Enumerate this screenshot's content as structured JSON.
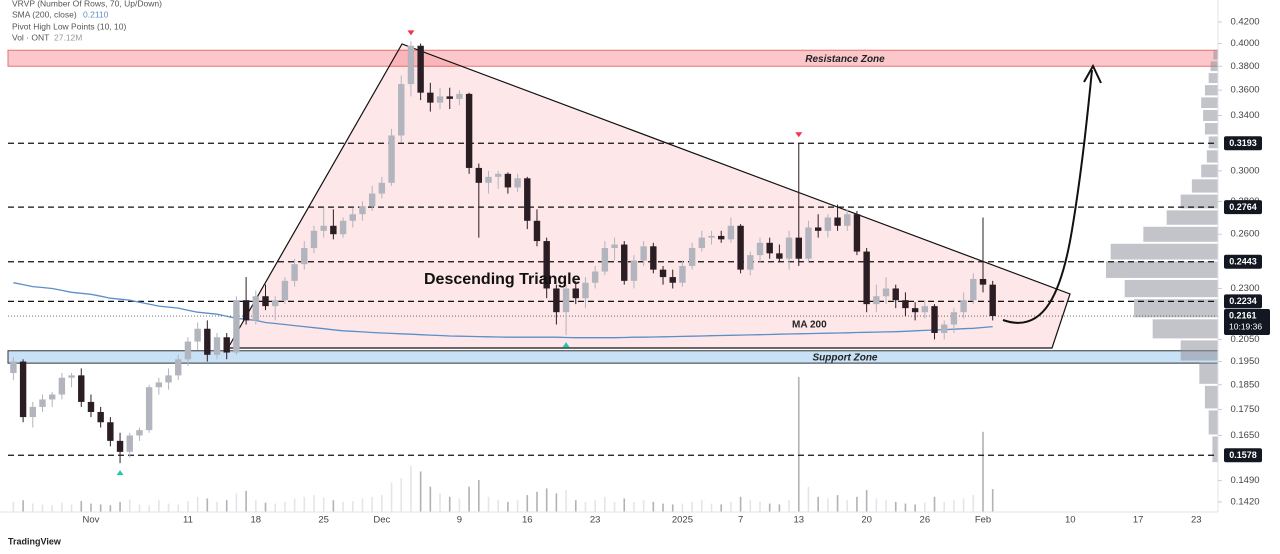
{
  "chart_data": {
    "type": "candlestick",
    "legend": [
      "VRVP (Number Of Rows, 70, Up/Down)",
      "SMA (200, close)",
      "0.2110",
      "Pivot High Low Points (10, 10)",
      "Vol · ONT",
      "27.12M"
    ],
    "log_scale": true,
    "grid": false,
    "up_color": "#b2b5be",
    "down_color": "#2b1d24",
    "sma_color": "#5b8fc9",
    "categories": [
      null,
      null,
      null,
      null,
      null,
      null,
      null,
      null,
      "Nov",
      null,
      null,
      null,
      null,
      null,
      null,
      null,
      null,
      null,
      "11",
      null,
      null,
      null,
      null,
      null,
      null,
      "18",
      null,
      null,
      null,
      null,
      null,
      null,
      "25",
      null,
      null,
      null,
      null,
      null,
      "Dec",
      null,
      null,
      null,
      null,
      null,
      null,
      null,
      "9",
      null,
      null,
      null,
      null,
      null,
      null,
      "16",
      null,
      null,
      null,
      null,
      null,
      null,
      "23",
      null,
      null,
      null,
      null,
      null,
      null,
      null,
      null,
      "2025",
      null,
      null,
      null,
      null,
      null,
      "7",
      null,
      null,
      null,
      null,
      null,
      "13",
      null,
      null,
      null,
      null,
      null,
      null,
      "20",
      null,
      null,
      null,
      null,
      null,
      "26",
      null,
      null,
      null,
      null,
      null,
      "Feb",
      null,
      null,
      null,
      null,
      null,
      null,
      null,
      null,
      "10",
      null,
      null,
      null,
      null,
      null,
      null,
      "17",
      null,
      null,
      null,
      null,
      null,
      "23",
      null
    ],
    "ohlc": [
      [
        0.19,
        0.197,
        0.187,
        0.195
      ],
      [
        0.195,
        0.196,
        0.17,
        0.172
      ],
      [
        0.172,
        0.178,
        0.168,
        0.176
      ],
      [
        0.176,
        0.181,
        0.174,
        0.179
      ],
      [
        0.179,
        0.182,
        0.176,
        0.181
      ],
      [
        0.181,
        0.19,
        0.179,
        0.188
      ],
      [
        0.188,
        0.19,
        0.184,
        0.189
      ],
      [
        0.189,
        0.192,
        0.176,
        0.178
      ],
      [
        0.178,
        0.181,
        0.172,
        0.174
      ],
      [
        0.174,
        0.176,
        0.168,
        0.17
      ],
      [
        0.17,
        0.172,
        0.161,
        0.163
      ],
      [
        0.163,
        0.166,
        0.155,
        0.159
      ],
      [
        0.159,
        0.166,
        0.157,
        0.165
      ],
      [
        0.165,
        0.168,
        0.163,
        0.167
      ],
      [
        0.167,
        0.185,
        0.166,
        0.184
      ],
      [
        0.184,
        0.188,
        0.181,
        0.186
      ],
      [
        0.186,
        0.192,
        0.183,
        0.189
      ],
      [
        0.189,
        0.198,
        0.187,
        0.196
      ],
      [
        0.196,
        0.206,
        0.193,
        0.204
      ],
      [
        0.204,
        0.213,
        0.2,
        0.21
      ],
      [
        0.21,
        0.214,
        0.195,
        0.198
      ],
      [
        0.198,
        0.208,
        0.196,
        0.206
      ],
      [
        0.206,
        0.208,
        0.196,
        0.199
      ],
      [
        0.199,
        0.226,
        0.198,
        0.224
      ],
      [
        0.224,
        0.236,
        0.212,
        0.214
      ],
      [
        0.214,
        0.229,
        0.212,
        0.226
      ],
      [
        0.226,
        0.232,
        0.219,
        0.221
      ],
      [
        0.221,
        0.226,
        0.214,
        0.224
      ],
      [
        0.224,
        0.236,
        0.222,
        0.234
      ],
      [
        0.234,
        0.246,
        0.231,
        0.243
      ],
      [
        0.243,
        0.256,
        0.24,
        0.252
      ],
      [
        0.252,
        0.265,
        0.249,
        0.262
      ],
      [
        0.262,
        0.276,
        0.258,
        0.265
      ],
      [
        0.265,
        0.275,
        0.257,
        0.26
      ],
      [
        0.26,
        0.27,
        0.258,
        0.268
      ],
      [
        0.268,
        0.276,
        0.264,
        0.272
      ],
      [
        0.272,
        0.28,
        0.268,
        0.277
      ],
      [
        0.277,
        0.29,
        0.274,
        0.285
      ],
      [
        0.285,
        0.296,
        0.282,
        0.292
      ],
      [
        0.292,
        0.33,
        0.29,
        0.325
      ],
      [
        0.325,
        0.372,
        0.32,
        0.365
      ],
      [
        0.365,
        0.402,
        0.355,
        0.398
      ],
      [
        0.398,
        0.4,
        0.352,
        0.358
      ],
      [
        0.358,
        0.366,
        0.343,
        0.35
      ],
      [
        0.35,
        0.362,
        0.345,
        0.355
      ],
      [
        0.355,
        0.362,
        0.345,
        0.353
      ],
      [
        0.353,
        0.36,
        0.348,
        0.357
      ],
      [
        0.357,
        0.358,
        0.298,
        0.302
      ],
      [
        0.302,
        0.305,
        0.258,
        0.292
      ],
      [
        0.292,
        0.3,
        0.285,
        0.296
      ],
      [
        0.296,
        0.3,
        0.288,
        0.298
      ],
      [
        0.298,
        0.299,
        0.285,
        0.289
      ],
      [
        0.289,
        0.298,
        0.286,
        0.295
      ],
      [
        0.295,
        0.296,
        0.263,
        0.268
      ],
      [
        0.268,
        0.275,
        0.253,
        0.256
      ],
      [
        0.256,
        0.258,
        0.225,
        0.23
      ],
      [
        0.23,
        0.232,
        0.212,
        0.218
      ],
      [
        0.218,
        0.232,
        0.207,
        0.23
      ],
      [
        0.23,
        0.234,
        0.222,
        0.225
      ],
      [
        0.225,
        0.236,
        0.22,
        0.233
      ],
      [
        0.233,
        0.242,
        0.23,
        0.239
      ],
      [
        0.239,
        0.256,
        0.237,
        0.252
      ],
      [
        0.252,
        0.258,
        0.245,
        0.254
      ],
      [
        0.254,
        0.256,
        0.232,
        0.234
      ],
      [
        0.234,
        0.248,
        0.23,
        0.245
      ],
      [
        0.245,
        0.256,
        0.242,
        0.253
      ],
      [
        0.253,
        0.255,
        0.238,
        0.24
      ],
      [
        0.24,
        0.242,
        0.232,
        0.236
      ],
      [
        0.236,
        0.24,
        0.23,
        0.233
      ],
      [
        0.233,
        0.245,
        0.231,
        0.242
      ],
      [
        0.242,
        0.255,
        0.24,
        0.252
      ],
      [
        0.252,
        0.262,
        0.25,
        0.258
      ],
      [
        0.258,
        0.262,
        0.254,
        0.259
      ],
      [
        0.259,
        0.262,
        0.255,
        0.257
      ],
      [
        0.257,
        0.27,
        0.255,
        0.265
      ],
      [
        0.265,
        0.266,
        0.238,
        0.24
      ],
      [
        0.24,
        0.25,
        0.237,
        0.248
      ],
      [
        0.248,
        0.258,
        0.244,
        0.255
      ],
      [
        0.255,
        0.258,
        0.246,
        0.249
      ],
      [
        0.249,
        0.254,
        0.244,
        0.246
      ],
      [
        0.246,
        0.262,
        0.24,
        0.258
      ],
      [
        0.258,
        0.3193,
        0.242,
        0.246
      ],
      [
        0.246,
        0.268,
        0.244,
        0.264
      ],
      [
        0.264,
        0.272,
        0.258,
        0.262
      ],
      [
        0.262,
        0.272,
        0.258,
        0.27
      ],
      [
        0.27,
        0.278,
        0.262,
        0.265
      ],
      [
        0.265,
        0.275,
        0.262,
        0.272
      ],
      [
        0.272,
        0.274,
        0.248,
        0.25
      ],
      [
        0.25,
        0.252,
        0.218,
        0.222
      ],
      [
        0.222,
        0.232,
        0.218,
        0.226
      ],
      [
        0.226,
        0.236,
        0.222,
        0.23
      ],
      [
        0.23,
        0.232,
        0.22,
        0.224
      ],
      [
        0.224,
        0.228,
        0.216,
        0.22
      ],
      [
        0.22,
        0.223,
        0.214,
        0.218
      ],
      [
        0.218,
        0.224,
        0.215,
        0.221
      ],
      [
        0.221,
        0.222,
        0.205,
        0.208
      ],
      [
        0.208,
        0.214,
        0.205,
        0.212
      ],
      [
        0.212,
        0.22,
        0.208,
        0.218
      ],
      [
        0.218,
        0.228,
        0.215,
        0.224
      ],
      [
        0.224,
        0.238,
        0.222,
        0.235
      ],
      [
        0.235,
        0.27,
        0.228,
        0.232
      ],
      [
        0.232,
        0.234,
        0.214,
        0.2161
      ],
      null,
      null,
      null,
      null,
      null,
      null,
      null,
      null,
      null,
      null,
      null,
      null,
      null,
      null,
      null,
      null,
      null,
      null,
      null,
      null,
      null,
      null
    ],
    "volume": [
      12,
      14,
      10,
      9,
      8,
      11,
      9,
      13,
      10,
      9,
      8,
      12,
      15,
      9,
      8,
      14,
      10,
      9,
      13,
      18,
      16,
      12,
      14,
      22,
      25,
      14,
      11,
      10,
      12,
      16,
      18,
      20,
      17,
      14,
      12,
      13,
      16,
      18,
      20,
      35,
      40,
      55,
      48,
      30,
      22,
      18,
      16,
      30,
      38,
      18,
      14,
      12,
      14,
      20,
      24,
      28,
      22,
      26,
      14,
      12,
      14,
      18,
      12,
      16,
      12,
      14,
      12,
      10,
      9,
      10,
      12,
      14,
      10,
      9,
      12,
      18,
      14,
      12,
      10,
      9,
      14,
      160,
      30,
      18,
      16,
      20,
      14,
      18,
      26,
      16,
      14,
      12,
      10,
      9,
      11,
      18,
      12,
      14,
      16,
      20,
      95,
      27.12,
      null,
      null,
      null,
      null,
      null,
      null,
      null,
      null,
      null,
      null,
      null,
      null,
      null,
      null,
      null,
      null,
      null,
      null,
      null,
      null,
      null,
      null
    ],
    "sma": [
      0.233,
      0.232,
      0.231,
      0.2305,
      0.23,
      0.229,
      0.228,
      0.2275,
      0.227,
      0.226,
      0.225,
      0.2245,
      0.224,
      0.223,
      0.222,
      0.221,
      0.2205,
      0.22,
      0.219,
      0.218,
      0.2175,
      0.217,
      0.216,
      0.215,
      0.2145,
      0.214,
      0.213,
      0.2125,
      0.212,
      0.2115,
      0.211,
      0.2105,
      0.21,
      0.2095,
      0.209,
      0.2088,
      0.2085,
      0.2082,
      0.208,
      0.2078,
      0.2076,
      0.2074,
      0.2072,
      0.207,
      0.2068,
      0.2066,
      0.2065,
      0.2064,
      0.2063,
      0.2062,
      0.2061,
      0.206,
      0.206,
      0.206,
      0.206,
      0.206,
      0.206,
      0.2059,
      0.2058,
      0.2058,
      0.2058,
      0.2058,
      0.2058,
      0.2059,
      0.206,
      0.206,
      0.2061,
      0.2062,
      0.2063,
      0.2064,
      0.2065,
      0.2066,
      0.2067,
      0.2068,
      0.2069,
      0.207,
      0.2071,
      0.2072,
      0.2073,
      0.2074,
      0.2075,
      0.2076,
      0.2077,
      0.2078,
      0.2079,
      0.208,
      0.2081,
      0.2082,
      0.2083,
      0.2084,
      0.2085,
      0.2086,
      0.2088,
      0.209,
      0.2092,
      0.2094,
      0.2096,
      0.2098,
      0.21,
      0.2102,
      0.2106,
      0.211,
      null,
      null,
      null,
      null,
      null,
      null,
      null,
      null,
      null,
      null,
      null,
      null,
      null,
      null,
      null,
      null,
      null,
      null,
      null,
      null,
      null,
      null
    ],
    "volume_profile": {
      "prices": [
        0.16,
        0.17,
        0.18,
        0.19,
        0.2,
        0.21,
        0.22,
        0.23,
        0.24,
        0.25,
        0.26,
        0.27,
        0.28,
        0.29,
        0.3,
        0.31,
        0.32,
        0.33,
        0.34,
        0.35,
        0.36,
        0.37,
        0.38,
        0.39
      ],
      "values": [
        6,
        10,
        14,
        20,
        40,
        70,
        90,
        100,
        120,
        115,
        80,
        55,
        40,
        28,
        18,
        12,
        10,
        14,
        16,
        18,
        14,
        10,
        8,
        5
      ]
    },
    "ylim": [
      0.1388,
      0.4315
    ],
    "yticks": [
      {
        "value": 0.42,
        "label": "0.4200"
      },
      {
        "value": 0.4,
        "label": "0.4000"
      },
      {
        "value": 0.38,
        "label": "0.3800"
      },
      {
        "value": 0.36,
        "label": "0.3600"
      },
      {
        "value": 0.34,
        "label": "0.3400"
      },
      {
        "value": 0.3,
        "label": "0.3000"
      },
      {
        "value": 0.28,
        "label": "0.2800"
      },
      {
        "value": 0.26,
        "label": "0.2600"
      },
      {
        "value": 0.23,
        "label": "0.2300"
      },
      {
        "value": 0.205,
        "label": "0.2050"
      },
      {
        "value": 0.195,
        "label": "0.1950"
      },
      {
        "value": 0.185,
        "label": "0.1850"
      },
      {
        "value": 0.175,
        "label": "0.1750"
      },
      {
        "value": 0.165,
        "label": "0.1650"
      },
      {
        "value": 0.149,
        "label": "0.1490"
      },
      {
        "value": 0.142,
        "label": "0.1420"
      }
    ],
    "levels": [
      0.3193,
      0.2764,
      0.2443,
      0.2234,
      0.1578
    ],
    "last_price": 0.2161,
    "countdown": "10:19:36",
    "resistance_zone": {
      "label": "Resistance Zone",
      "range": [
        0.38,
        0.394
      ]
    },
    "support_zone": {
      "label": "Support Zone",
      "range": [
        0.1943,
        0.1998
      ]
    },
    "pattern_label": "Descending Triangle",
    "sma_label": "MA 200",
    "brand": "TradingView"
  }
}
